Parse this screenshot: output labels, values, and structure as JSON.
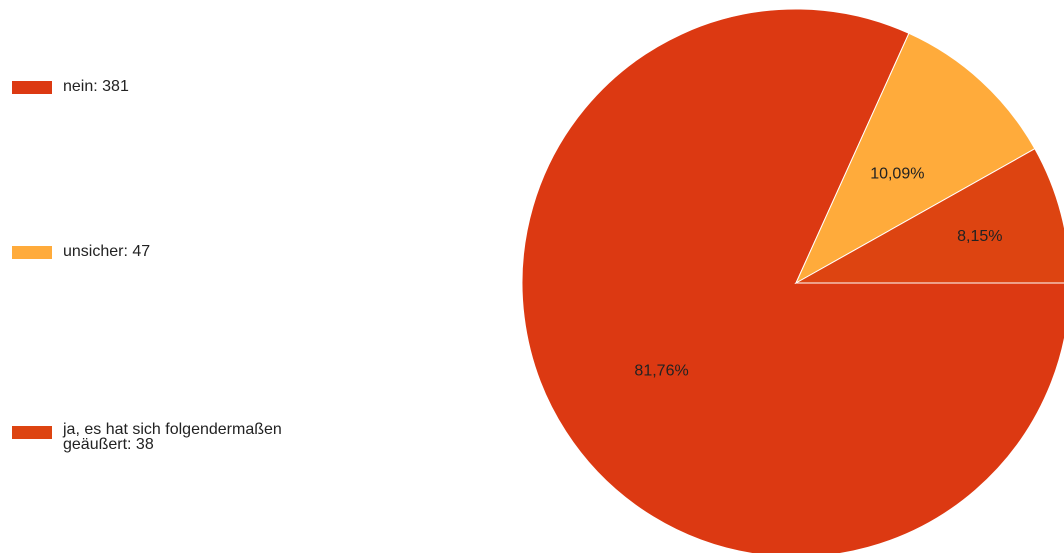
{
  "chart_data": {
    "type": "pie",
    "slices": [
      {
        "label": "nein",
        "count": 381,
        "percent_label": "81,76%",
        "value": 81.76,
        "color": "#dc3912"
      },
      {
        "label": "unsicher",
        "count": 47,
        "percent_label": "10,09%",
        "value": 10.09,
        "color": "#ffab3b"
      },
      {
        "label": "ja, es hat sich folgendermaßen geäußert",
        "count": 38,
        "percent_label": "8,15%",
        "value": 8.15,
        "color": "#dd4411"
      }
    ],
    "legend_position": "left"
  },
  "legend": {
    "items": [
      {
        "text": "nein: 381"
      },
      {
        "text": "unsicher: 47"
      },
      {
        "text": "ja, es hat sich folgendermaßen geäußert: 38"
      }
    ]
  }
}
